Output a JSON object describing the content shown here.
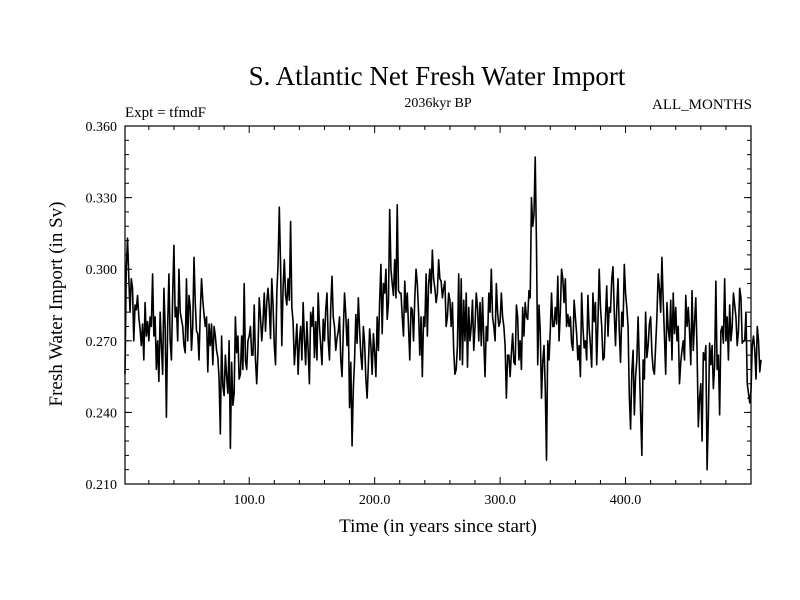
{
  "chart_data": {
    "type": "line",
    "title": "S. Atlantic Net Fresh Water Import",
    "subtitle": "2036kyr BP",
    "left_label": "Expt = tfmdF",
    "right_label": "ALL_MONTHS",
    "xlabel": "Time (in years since start)",
    "ylabel": "Fresh Water Import (in Sv)",
    "xlim": [
      1,
      500
    ],
    "ylim": [
      0.21,
      0.36
    ],
    "xticks": [
      100,
      200,
      300,
      400
    ],
    "xtick_labels": [
      "100.0",
      "200.0",
      "300.0",
      "400.0"
    ],
    "yticks": [
      0.21,
      0.24,
      0.27,
      0.3,
      0.33,
      0.36
    ],
    "ytick_labels": [
      "0.210",
      "0.240",
      "0.270",
      "0.300",
      "0.330",
      "0.360"
    ],
    "grid": false,
    "series": [
      {
        "name": "Fresh Water Import",
        "color": "#000000",
        "x_start": 1,
        "x_step": 1,
        "values": [
          0.256,
          0.3,
          0.313,
          0.297,
          0.282,
          0.296,
          0.292,
          0.27,
          0.285,
          0.283,
          0.289,
          0.28,
          0.275,
          0.268,
          0.277,
          0.262,
          0.286,
          0.272,
          0.278,
          0.27,
          0.28,
          0.276,
          0.298,
          0.272,
          0.28,
          0.258,
          0.27,
          0.253,
          0.282,
          0.268,
          0.256,
          0.292,
          0.276,
          0.238,
          0.276,
          0.298,
          0.27,
          0.262,
          0.289,
          0.31,
          0.28,
          0.284,
          0.27,
          0.3,
          0.282,
          0.279,
          0.276,
          0.268,
          0.265,
          0.296,
          0.27,
          0.289,
          0.284,
          0.266,
          0.276,
          0.305,
          0.286,
          0.274,
          0.273,
          0.262,
          0.282,
          0.296,
          0.287,
          0.281,
          0.276,
          0.28,
          0.257,
          0.277,
          0.268,
          0.277,
          0.26,
          0.276,
          0.272,
          0.266,
          0.263,
          0.254,
          0.231,
          0.272,
          0.251,
          0.247,
          0.264,
          0.255,
          0.248,
          0.27,
          0.225,
          0.261,
          0.243,
          0.248,
          0.28,
          0.265,
          0.272,
          0.254,
          0.256,
          0.272,
          0.258,
          0.294,
          0.262,
          0.258,
          0.27,
          0.272,
          0.276,
          0.264,
          0.264,
          0.285,
          0.262,
          0.252,
          0.266,
          0.288,
          0.28,
          0.27,
          0.278,
          0.29,
          0.274,
          0.286,
          0.292,
          0.284,
          0.271,
          0.296,
          0.285,
          0.268,
          0.26,
          0.29,
          0.302,
          0.326,
          0.302,
          0.268,
          0.292,
          0.304,
          0.289,
          0.285,
          0.296,
          0.287,
          0.32,
          0.284,
          0.278,
          0.26,
          0.268,
          0.277,
          0.256,
          0.27,
          0.276,
          0.262,
          0.286,
          0.271,
          0.26,
          0.278,
          0.266,
          0.252,
          0.282,
          0.276,
          0.284,
          0.263,
          0.278,
          0.262,
          0.29,
          0.276,
          0.268,
          0.26,
          0.279,
          0.27,
          0.283,
          0.29,
          0.27,
          0.262,
          0.284,
          0.297,
          0.28,
          0.276,
          0.266,
          0.271,
          0.274,
          0.28,
          0.262,
          0.255,
          0.274,
          0.29,
          0.281,
          0.268,
          0.279,
          0.242,
          0.261,
          0.226,
          0.25,
          0.262,
          0.281,
          0.269,
          0.288,
          0.275,
          0.264,
          0.258,
          0.276,
          0.269,
          0.254,
          0.246,
          0.26,
          0.275,
          0.268,
          0.256,
          0.273,
          0.265,
          0.255,
          0.28,
          0.266,
          0.287,
          0.302,
          0.273,
          0.294,
          0.29,
          0.3,
          0.279,
          0.286,
          0.325,
          0.3,
          0.294,
          0.289,
          0.304,
          0.288,
          0.327,
          0.291,
          0.29,
          0.29,
          0.28,
          0.272,
          0.295,
          0.282,
          0.29,
          0.276,
          0.262,
          0.284,
          0.283,
          0.27,
          0.288,
          0.3,
          0.294,
          0.282,
          0.264,
          0.28,
          0.255,
          0.28,
          0.276,
          0.298,
          0.272,
          0.294,
          0.3,
          0.29,
          0.308,
          0.296,
          0.292,
          0.286,
          0.29,
          0.304,
          0.296,
          0.295,
          0.288,
          0.292,
          0.295,
          0.276,
          0.28,
          0.29,
          0.287,
          0.276,
          0.286,
          0.266,
          0.256,
          0.258,
          0.268,
          0.298,
          0.262,
          0.296,
          0.26,
          0.287,
          0.27,
          0.29,
          0.259,
          0.284,
          0.27,
          0.276,
          0.287,
          0.266,
          0.276,
          0.29,
          0.284,
          0.27,
          0.286,
          0.268,
          0.288,
          0.27,
          0.255,
          0.276,
          0.27,
          0.29,
          0.282,
          0.3,
          0.28,
          0.276,
          0.27,
          0.294,
          0.282,
          0.276,
          0.278,
          0.29,
          0.28,
          0.276,
          0.268,
          0.246,
          0.264,
          0.264,
          0.255,
          0.265,
          0.273,
          0.261,
          0.26,
          0.285,
          0.28,
          0.262,
          0.27,
          0.258,
          0.284,
          0.272,
          0.286,
          0.28,
          0.279,
          0.291,
          0.288,
          0.33,
          0.318,
          0.323,
          0.347,
          0.31,
          0.26,
          0.285,
          0.274,
          0.246,
          0.261,
          0.268,
          0.25,
          0.22,
          0.27,
          0.262,
          0.274,
          0.29,
          0.276,
          0.276,
          0.284,
          0.277,
          0.297,
          0.27,
          0.282,
          0.3,
          0.296,
          0.286,
          0.296,
          0.276,
          0.281,
          0.276,
          0.28,
          0.269,
          0.266,
          0.287,
          0.28,
          0.273,
          0.262,
          0.268,
          0.255,
          0.29,
          0.276,
          0.267,
          0.27,
          0.262,
          0.289,
          0.275,
          0.268,
          0.259,
          0.29,
          0.278,
          0.286,
          0.26,
          0.278,
          0.3,
          0.284,
          0.276,
          0.262,
          0.263,
          0.28,
          0.293,
          0.272,
          0.284,
          0.282,
          0.296,
          0.301,
          0.282,
          0.268,
          0.284,
          0.296,
          0.274,
          0.261,
          0.282,
          0.276,
          0.302,
          0.29,
          0.284,
          0.276,
          0.247,
          0.233,
          0.257,
          0.266,
          0.239,
          0.255,
          0.262,
          0.28,
          0.26,
          0.24,
          0.222,
          0.262,
          0.254,
          0.282,
          0.263,
          0.268,
          0.277,
          0.28,
          0.265,
          0.258,
          0.256,
          0.268,
          0.28,
          0.298,
          0.292,
          0.282,
          0.305,
          0.287,
          0.272,
          0.256,
          0.286,
          0.275,
          0.27,
          0.287,
          0.262,
          0.29,
          0.273,
          0.284,
          0.27,
          0.276,
          0.252,
          0.261,
          0.266,
          0.27,
          0.262,
          0.289,
          0.276,
          0.284,
          0.274,
          0.26,
          0.291,
          0.266,
          0.278,
          0.288,
          0.266,
          0.234,
          0.246,
          0.252,
          0.228,
          0.265,
          0.262,
          0.268,
          0.216,
          0.238,
          0.269,
          0.26,
          0.268,
          0.25,
          0.26,
          0.295,
          0.258,
          0.264,
          0.239,
          0.274,
          0.276,
          0.269,
          0.296,
          0.27,
          0.28,
          0.262,
          0.285,
          0.27,
          0.276,
          0.29,
          0.285,
          0.28,
          0.268,
          0.274,
          0.292,
          0.288,
          0.269,
          0.27,
          0.27,
          0.282,
          0.252,
          0.248,
          0.244,
          0.249,
          0.268,
          0.272,
          0.266,
          0.254,
          0.276,
          0.27,
          0.257,
          0.262
        ]
      }
    ]
  }
}
